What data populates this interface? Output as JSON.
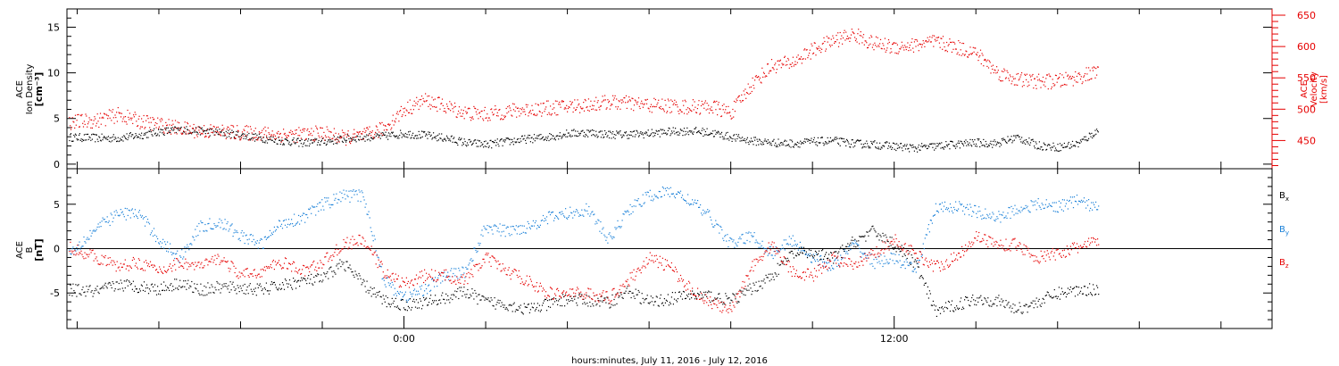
{
  "chart_data": [
    {
      "type": "scatter",
      "xlabel": "hours:minutes, July 11, 2016 - July 12, 2016",
      "ylabel": [
        "ACE",
        "Ion Density",
        "[cm⁻³]"
      ],
      "y2label": [
        "ACE",
        "Velocity",
        "[km/s]"
      ],
      "ylim": [
        -0.5,
        17
      ],
      "y_ticks": [
        "0",
        "5",
        "10",
        "15"
      ],
      "y2lim": [
        405,
        660
      ],
      "y2_ticks": [
        "450",
        "500",
        "550",
        "600",
        "650"
      ],
      "x_range_hours": [
        -8.25,
        21.25
      ],
      "x_tick_labels": [
        {
          "x": 0,
          "label": "0:00"
        },
        {
          "x": 12,
          "label": "12:00"
        }
      ],
      "series": [
        {
          "color": "#000000",
          "axis": "left",
          "points": [
            [
              -8.2,
              3.0
            ],
            [
              -7.5,
              2.9
            ],
            [
              -7,
              2.9
            ],
            [
              -6.5,
              3.2
            ],
            [
              -6,
              3.6
            ],
            [
              -5.5,
              3.8
            ],
            [
              -5,
              3.7
            ],
            [
              -4.5,
              3.5
            ],
            [
              -4,
              3.2
            ],
            [
              -3.5,
              2.9
            ],
            [
              -3,
              2.6
            ],
            [
              -2.5,
              2.4
            ],
            [
              -2,
              2.5
            ],
            [
              -1.5,
              2.8
            ],
            [
              -1,
              3.0
            ],
            [
              -0.5,
              3.1
            ],
            [
              0,
              3.4
            ],
            [
              0.5,
              3.2
            ],
            [
              1,
              2.9
            ],
            [
              1.5,
              2.4
            ],
            [
              2,
              2.2
            ],
            [
              2.5,
              2.5
            ],
            [
              3,
              2.8
            ],
            [
              3.5,
              3.0
            ],
            [
              4,
              3.4
            ],
            [
              4.5,
              3.5
            ],
            [
              5,
              3.3
            ],
            [
              5.5,
              3.3
            ],
            [
              6,
              3.4
            ],
            [
              6.5,
              3.6
            ],
            [
              7,
              3.7
            ],
            [
              7.5,
              3.5
            ],
            [
              8,
              3.0
            ],
            [
              8.5,
              2.6
            ],
            [
              9,
              2.4
            ],
            [
              9.5,
              2.3
            ],
            [
              10,
              2.5
            ],
            [
              10.5,
              2.6
            ],
            [
              11,
              2.3
            ],
            [
              11.5,
              2.2
            ],
            [
              12,
              2.0
            ],
            [
              12.5,
              1.8
            ],
            [
              13,
              2.0
            ],
            [
              13.5,
              2.2
            ],
            [
              14,
              2.4
            ],
            [
              14.5,
              2.3
            ],
            [
              15,
              3.0
            ],
            [
              15.5,
              2.1
            ],
            [
              16,
              1.9
            ],
            [
              16.5,
              2.3
            ],
            [
              17,
              3.8
            ]
          ]
        },
        {
          "color": "#e60000",
          "axis": "right",
          "points": [
            [
              -8.2,
              480
            ],
            [
              -7.5,
              483
            ],
            [
              -7,
              492
            ],
            [
              -6.5,
              482
            ],
            [
              -6,
              476
            ],
            [
              -5.5,
              470
            ],
            [
              -5,
              466
            ],
            [
              -4.5,
              465
            ],
            [
              -4,
              463
            ],
            [
              -3.5,
              462
            ],
            [
              -3,
              460
            ],
            [
              -2.5,
              460
            ],
            [
              -2,
              463
            ],
            [
              -1.5,
              455
            ],
            [
              -1,
              458
            ],
            [
              -0.5,
              470
            ],
            [
              0,
              500
            ],
            [
              0.5,
              515
            ],
            [
              1,
              505
            ],
            [
              1.5,
              495
            ],
            [
              2,
              492
            ],
            [
              2.5,
              497
            ],
            [
              3,
              500
            ],
            [
              3.5,
              502
            ],
            [
              4,
              505
            ],
            [
              4.5,
              508
            ],
            [
              5,
              512
            ],
            [
              5.5,
              510
            ],
            [
              6,
              507
            ],
            [
              6.5,
              506
            ],
            [
              7,
              504
            ],
            [
              7.5,
              505
            ],
            [
              8,
              495
            ],
            [
              8.5,
              540
            ],
            [
              9,
              570
            ],
            [
              9.5,
              575
            ],
            [
              10,
              595
            ],
            [
              10.5,
              610
            ],
            [
              11,
              620
            ],
            [
              11.5,
              605
            ],
            [
              12,
              600
            ],
            [
              12.5,
              603
            ],
            [
              13,
              608
            ],
            [
              13.5,
              600
            ],
            [
              14,
              590
            ],
            [
              14.5,
              560
            ],
            [
              15,
              548
            ],
            [
              15.5,
              545
            ],
            [
              16,
              545
            ],
            [
              16.5,
              552
            ],
            [
              17,
              560
            ]
          ]
        }
      ]
    },
    {
      "type": "scatter",
      "xlabel": "hours:minutes, July 11, 2016 - July 12, 2016",
      "ylabel": [
        "ACE",
        "B",
        "[nT]"
      ],
      "ylim": [
        -9,
        9
      ],
      "y_ticks": [
        "-5",
        "0",
        "5"
      ],
      "zero_line": true,
      "x_range_hours": [
        -8.25,
        21.25
      ],
      "legend": [
        {
          "label": "B",
          "sub": "x",
          "color": "#000000"
        },
        {
          "label": "B",
          "sub": "y",
          "color": "#1a80d8"
        },
        {
          "label": "B",
          "sub": "z",
          "color": "#e60000"
        }
      ],
      "series": [
        {
          "name": "Bx",
          "color": "#000000",
          "points": [
            [
              -8.2,
              -4.6
            ],
            [
              -7.5,
              -4.8
            ],
            [
              -7,
              -4.0
            ],
            [
              -6.5,
              -4.2
            ],
            [
              -6,
              -4.5
            ],
            [
              -5.5,
              -3.8
            ],
            [
              -5,
              -4.6
            ],
            [
              -4.5,
              -4.3
            ],
            [
              -4,
              -4.4
            ],
            [
              -3.5,
              -4.6
            ],
            [
              -3,
              -4.1
            ],
            [
              -2.5,
              -3.6
            ],
            [
              -2,
              -3.4
            ],
            [
              -1.5,
              -1.5
            ],
            [
              -1,
              -4.0
            ],
            [
              -0.5,
              -5.8
            ],
            [
              0,
              -6.3
            ],
            [
              0.5,
              -6.0
            ],
            [
              1,
              -5.5
            ],
            [
              1.5,
              -4.8
            ],
            [
              2,
              -6.0
            ],
            [
              2.5,
              -6.2
            ],
            [
              3,
              -6.8
            ],
            [
              3.5,
              -6.3
            ],
            [
              4,
              -5.6
            ],
            [
              4.5,
              -5.8
            ],
            [
              5,
              -6.0
            ],
            [
              5.5,
              -4.7
            ],
            [
              6,
              -6.0
            ],
            [
              6.5,
              -5.6
            ],
            [
              7,
              -5.2
            ],
            [
              7.5,
              -5.3
            ],
            [
              8,
              -5.8
            ],
            [
              8.5,
              -4.5
            ],
            [
              9,
              -3.0
            ],
            [
              9.5,
              -0.5
            ],
            [
              10,
              -0.5
            ],
            [
              10.5,
              -1.0
            ],
            [
              11,
              0.8
            ],
            [
              11.5,
              2.0
            ],
            [
              12,
              0.5
            ],
            [
              12.5,
              -1.5
            ],
            [
              13,
              -7.0
            ],
            [
              13.5,
              -6.3
            ],
            [
              14,
              -5.6
            ],
            [
              14.5,
              -5.8
            ],
            [
              15,
              -6.8
            ],
            [
              15.5,
              -6.0
            ],
            [
              16,
              -5.0
            ],
            [
              16.5,
              -4.6
            ],
            [
              17,
              -4.5
            ]
          ]
        },
        {
          "name": "By",
          "color": "#1a80d8",
          "points": [
            [
              -8.2,
              -0.5
            ],
            [
              -7.5,
              2.5
            ],
            [
              -7,
              4.0
            ],
            [
              -6.5,
              4.0
            ],
            [
              -6,
              1.0
            ],
            [
              -5.5,
              -1.0
            ],
            [
              -5,
              2.5
            ],
            [
              -4.5,
              3.0
            ],
            [
              -4,
              1.5
            ],
            [
              -3.5,
              0.5
            ],
            [
              -3,
              3.0
            ],
            [
              -2.5,
              3.5
            ],
            [
              -2,
              5.0
            ],
            [
              -1.5,
              6.0
            ],
            [
              -1,
              6.0
            ],
            [
              -0.5,
              -3.5
            ],
            [
              0,
              -5.5
            ],
            [
              0.5,
              -4.5
            ],
            [
              1,
              -3.0
            ],
            [
              1.5,
              -2.5
            ],
            [
              2,
              2.5
            ],
            [
              2.5,
              2.0
            ],
            [
              3,
              2.5
            ],
            [
              3.5,
              3.5
            ],
            [
              4,
              4.0
            ],
            [
              4.5,
              4.5
            ],
            [
              5,
              1.0
            ],
            [
              5.5,
              4.5
            ],
            [
              6,
              6.0
            ],
            [
              6.5,
              6.5
            ],
            [
              7,
              5.5
            ],
            [
              7.5,
              3.5
            ],
            [
              8,
              0.5
            ],
            [
              8.5,
              1.5
            ],
            [
              9,
              -0.5
            ],
            [
              9.5,
              1.0
            ],
            [
              10,
              -1.0
            ],
            [
              10.5,
              -2.0
            ],
            [
              11,
              0.5
            ],
            [
              11.5,
              -1.5
            ],
            [
              12,
              -1.0
            ],
            [
              12.5,
              -2.5
            ],
            [
              13,
              4.5
            ],
            [
              13.5,
              4.8
            ],
            [
              14,
              4.2
            ],
            [
              14.5,
              3.5
            ],
            [
              15,
              4.5
            ],
            [
              15.5,
              5.0
            ],
            [
              16,
              4.8
            ],
            [
              16.5,
              5.5
            ],
            [
              17,
              4.5
            ]
          ]
        },
        {
          "name": "Bz",
          "color": "#e60000",
          "points": [
            [
              -8.2,
              0.2
            ],
            [
              -7.5,
              -1.0
            ],
            [
              -7,
              -2.0
            ],
            [
              -6.5,
              -1.5
            ],
            [
              -6,
              -2.5
            ],
            [
              -5.5,
              -1.5
            ],
            [
              -5,
              -2.0
            ],
            [
              -4.5,
              -1.0
            ],
            [
              -4,
              -3.0
            ],
            [
              -3.5,
              -2.5
            ],
            [
              -3,
              -1.5
            ],
            [
              -2.5,
              -2.5
            ],
            [
              -2,
              -1.5
            ],
            [
              -1.5,
              0.5
            ],
            [
              -1,
              1.0
            ],
            [
              -0.5,
              -2.5
            ],
            [
              0,
              -4.0
            ],
            [
              0.5,
              -3.0
            ],
            [
              1,
              -3.0
            ],
            [
              1.5,
              -3.5
            ],
            [
              2,
              -1.0
            ],
            [
              2.5,
              -2.5
            ],
            [
              3,
              -3.5
            ],
            [
              3.5,
              -5.0
            ],
            [
              4,
              -5.0
            ],
            [
              4.5,
              -5.0
            ],
            [
              5,
              -5.5
            ],
            [
              5.5,
              -3.5
            ],
            [
              6,
              -1.0
            ],
            [
              6.5,
              -2.0
            ],
            [
              7,
              -4.5
            ],
            [
              7.5,
              -6.0
            ],
            [
              8,
              -7.0
            ],
            [
              8.5,
              -2.0
            ],
            [
              9,
              0.5
            ],
            [
              9.5,
              -2.5
            ],
            [
              10,
              -3.0
            ],
            [
              10.5,
              -1.0
            ],
            [
              11,
              -2.0
            ],
            [
              11.5,
              -0.5
            ],
            [
              12,
              1.0
            ],
            [
              12.5,
              -0.5
            ],
            [
              13,
              -2.0
            ],
            [
              13.5,
              -1.0
            ],
            [
              14,
              1.5
            ],
            [
              14.5,
              0.5
            ],
            [
              15,
              0.5
            ],
            [
              15.5,
              -1.0
            ],
            [
              16,
              -0.5
            ],
            [
              16.5,
              0.2
            ],
            [
              17,
              1.0
            ]
          ]
        }
      ]
    }
  ]
}
